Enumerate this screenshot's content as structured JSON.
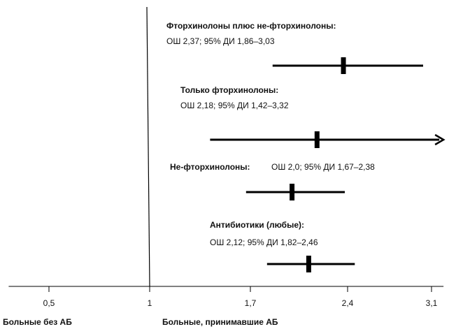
{
  "chart_data": {
    "type": "forest",
    "xlim": [
      0.3,
      3.2
    ],
    "xticks": [
      {
        "value": 0.5,
        "label": "0,5"
      },
      1,
      {
        "value": 1.7,
        "label": "1,7"
      },
      {
        "value": 2.4,
        "label": "2,4"
      },
      {
        "value": 3.1,
        "label": "3,1"
      }
    ],
    "reference": 1,
    "left_label": "Больные без АБ",
    "right_label": "Больные, принимавшие АБ",
    "color": "#000000",
    "rows": [
      {
        "name": "Фторхинолоны плюс не-фторхинолоны:",
        "stats": "ОШ 2,37; 95% ДИ 1,86–3,03",
        "or": 2.37,
        "lo": 1.86,
        "hi": 3.03
      },
      {
        "name": "Только фторхинолоны:",
        "stats": "ОШ 2,18; 95% ДИ 1,42–3,32",
        "or": 2.18,
        "lo": 1.42,
        "hi": 3.32
      },
      {
        "name": "Не-фторхинолоны:",
        "stats": "ОШ 2,0; 95% ДИ 1,67–2,38",
        "or": 2.0,
        "lo": 1.67,
        "hi": 2.38
      },
      {
        "name": "Антибиотики (любые):",
        "stats": "ОШ 2,12; 95% ДИ 1,82–2,46",
        "or": 2.12,
        "lo": 1.82,
        "hi": 2.46
      }
    ]
  }
}
